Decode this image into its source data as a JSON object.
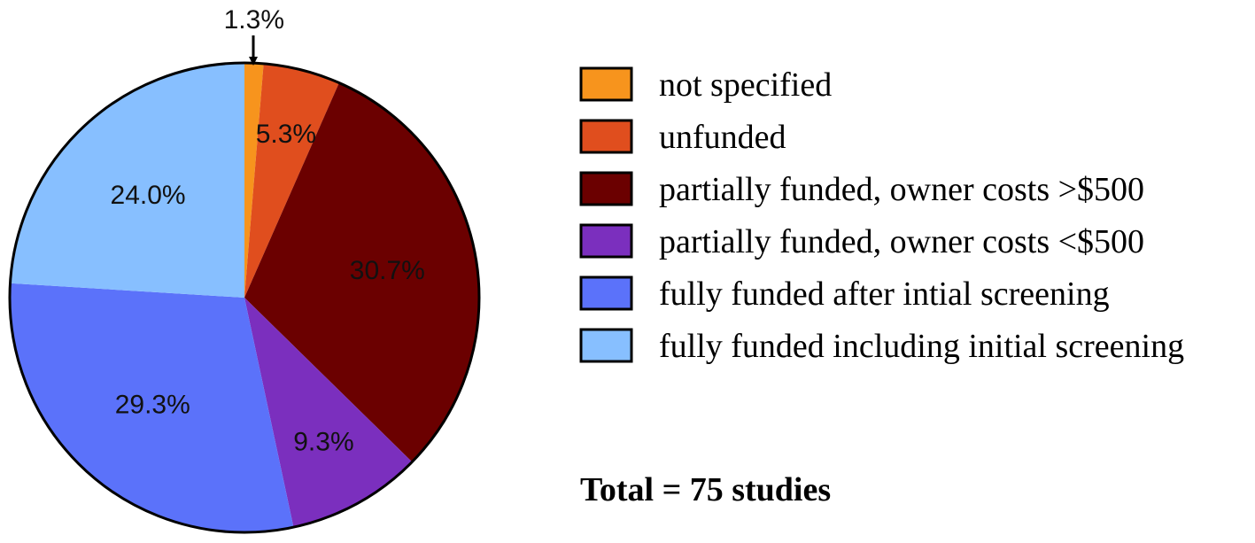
{
  "chart_data": {
    "type": "pie",
    "categories": [
      "not specified",
      "unfunded",
      "partially funded, owner costs >$500",
      "partially funded, owner costs <$500",
      "fully funded after intial screening",
      "fully funded including initial screening"
    ],
    "values": [
      1.3,
      5.3,
      30.7,
      9.3,
      29.3,
      24.0
    ],
    "data_labels": [
      "1.3%",
      "5.3%",
      "30.7%",
      "9.3%",
      "29.3%",
      "24.0%"
    ],
    "colors": [
      "#F7941D",
      "#E04E1E",
      "#6B0000",
      "#7B2FBE",
      "#5B72FA",
      "#87BFFF"
    ],
    "legend_placement": "right",
    "annotation": "Total = 75 studies"
  }
}
